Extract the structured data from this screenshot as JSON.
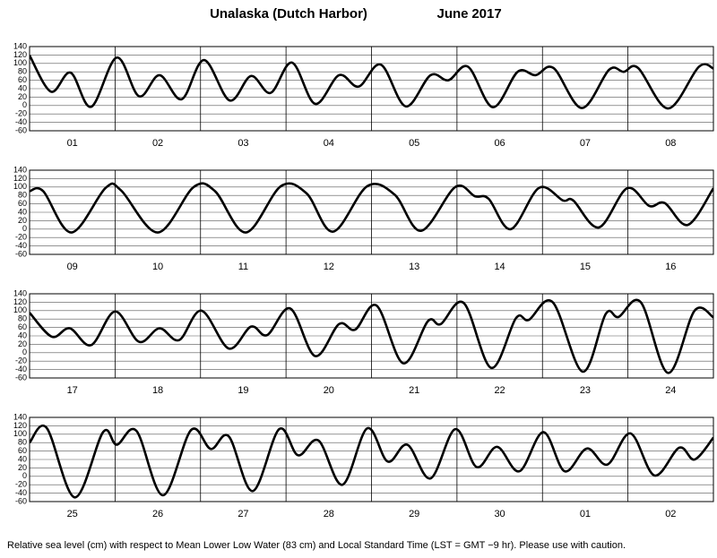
{
  "header": {
    "title": "Unalaska (Dutch Harbor)",
    "month": "June",
    "year": "2017"
  },
  "footer": "Relative sea level (cm) with respect to Mean Lower Low Water (83 cm) and Local Standard Time (LST = GMT −9 hr). Please use with caution.",
  "chart_data": [
    {
      "type": "line",
      "categories": [
        "01",
        "02",
        "03",
        "04",
        "05",
        "06",
        "07",
        "08"
      ],
      "xlim": [
        0,
        8
      ],
      "ylim": [
        -60,
        140
      ],
      "yticks": [
        -60,
        -40,
        -20,
        0,
        20,
        40,
        60,
        80,
        100,
        120,
        140
      ],
      "grid": true,
      "x": [
        0,
        0.25,
        0.48,
        0.72,
        1.02,
        1.28,
        1.52,
        1.78,
        2.04,
        2.34,
        2.59,
        2.82,
        3.07,
        3.34,
        3.62,
        3.85,
        4.11,
        4.4,
        4.69,
        4.9,
        5.13,
        5.42,
        5.71,
        5.92,
        6.13,
        6.46,
        6.78,
        6.95,
        7.12,
        7.47,
        7.83,
        8
      ],
      "series": [
        {
          "name": "Sea level",
          "color": "#000000",
          "values": [
            119,
            33,
            78,
            -3,
            114,
            22,
            72,
            15,
            108,
            12,
            70,
            30,
            102,
            4,
            72,
            45,
            97,
            -2,
            72,
            60,
            92,
            -4,
            80,
            72,
            89,
            -6,
            85,
            80,
            89,
            -7,
            92,
            88
          ]
        }
      ]
    },
    {
      "type": "line",
      "categories": [
        "09",
        "10",
        "11",
        "12",
        "13",
        "14",
        "15",
        "16"
      ],
      "xlim": [
        0,
        8
      ],
      "ylim": [
        -60,
        140
      ],
      "yticks": [
        -60,
        -40,
        -20,
        0,
        20,
        40,
        60,
        80,
        100,
        120,
        140
      ],
      "grid": true,
      "x": [
        0,
        0.16,
        0.49,
        0.89,
        1.07,
        1.5,
        1.92,
        2.17,
        2.53,
        2.94,
        3.24,
        3.55,
        3.95,
        4.27,
        4.58,
        4.98,
        5.21,
        5.37,
        5.63,
        5.96,
        6.24,
        6.36,
        6.66,
        6.99,
        7.25,
        7.43,
        7.7,
        8
      ],
      "series": [
        {
          "name": "Sea level",
          "color": "#000000",
          "values": [
            90,
            90,
            -8,
            98,
            92,
            -8,
            100,
            90,
            -8,
            102,
            85,
            -6,
            102,
            82,
            -4,
            100,
            78,
            72,
            0,
            98,
            68,
            68,
            4,
            97,
            55,
            62,
            10,
            97
          ]
        }
      ]
    },
    {
      "type": "line",
      "categories": [
        "17",
        "18",
        "19",
        "20",
        "21",
        "22",
        "23",
        "24"
      ],
      "xlim": [
        0,
        8
      ],
      "ylim": [
        -60,
        140
      ],
      "yticks": [
        -60,
        -40,
        -20,
        0,
        20,
        40,
        60,
        80,
        100,
        120,
        140
      ],
      "grid": true,
      "x": [
        0,
        0.26,
        0.47,
        0.72,
        1.0,
        1.28,
        1.52,
        1.75,
        2.01,
        2.33,
        2.59,
        2.78,
        3.05,
        3.34,
        3.62,
        3.81,
        4.06,
        4.37,
        4.66,
        4.81,
        5.08,
        5.4,
        5.69,
        5.84,
        6.12,
        6.47,
        6.74,
        6.89,
        7.15,
        7.47,
        7.78,
        8
      ],
      "series": [
        {
          "name": "Sea level",
          "color": "#000000",
          "values": [
            95,
            38,
            58,
            18,
            98,
            26,
            58,
            30,
            100,
            10,
            62,
            42,
            105,
            -8,
            68,
            55,
            112,
            -25,
            75,
            68,
            118,
            -36,
            82,
            78,
            120,
            -45,
            92,
            85,
            120,
            -48,
            100,
            84
          ]
        }
      ]
    },
    {
      "type": "line",
      "categories": [
        "25",
        "26",
        "27",
        "28",
        "29",
        "30",
        "01",
        "02"
      ],
      "xlim": [
        0,
        8
      ],
      "ylim": [
        -60,
        140
      ],
      "yticks": [
        -60,
        -40,
        -20,
        0,
        20,
        40,
        60,
        80,
        100,
        120,
        140
      ],
      "grid": true,
      "x": [
        0,
        0.2,
        0.53,
        0.86,
        1.02,
        1.25,
        1.56,
        1.89,
        2.12,
        2.33,
        2.61,
        2.92,
        3.14,
        3.38,
        3.66,
        3.95,
        4.19,
        4.42,
        4.69,
        4.98,
        5.23,
        5.47,
        5.73,
        6.01,
        6.26,
        6.52,
        6.76,
        7.03,
        7.31,
        7.6,
        7.78,
        8
      ],
      "series": [
        {
          "name": "Sea level",
          "color": "#000000",
          "values": [
            80,
            115,
            -50,
            105,
            75,
            108,
            -45,
            110,
            65,
            95,
            -35,
            112,
            50,
            85,
            -20,
            114,
            35,
            75,
            -5,
            112,
            22,
            70,
            12,
            105,
            12,
            66,
            28,
            102,
            2,
            68,
            40,
            92
          ]
        }
      ]
    }
  ]
}
